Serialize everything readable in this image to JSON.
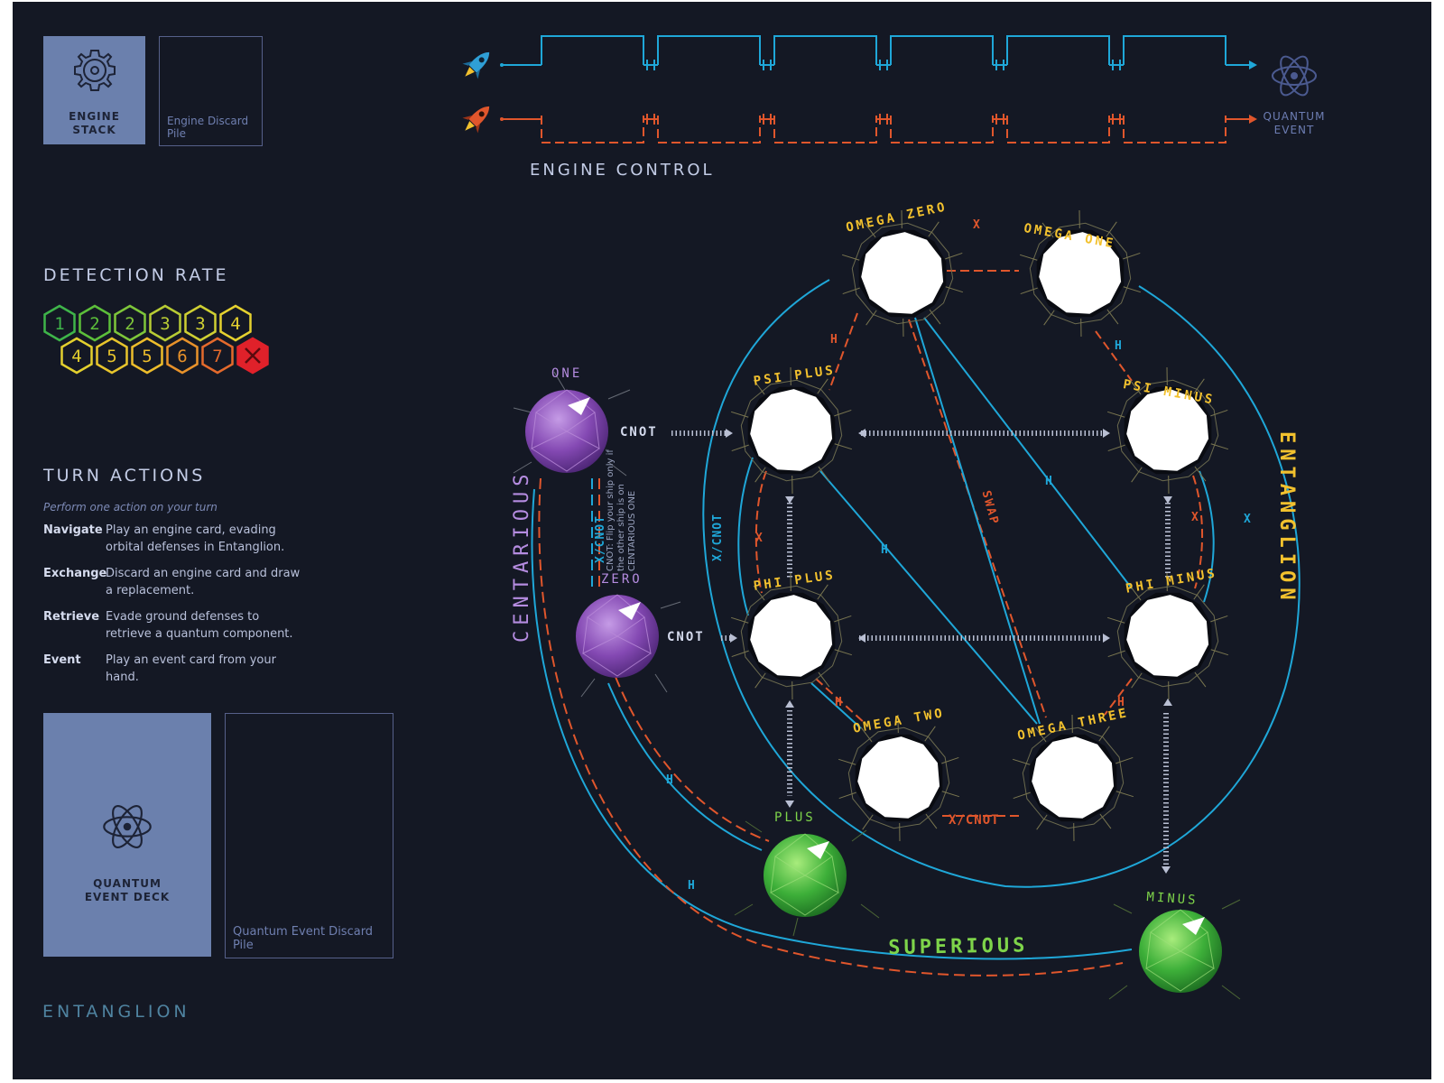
{
  "engine": {
    "stack_label": [
      "ENGINE",
      "STACK"
    ],
    "discard_label": "Engine Discard Pile",
    "control_label": "ENGINE CONTROL",
    "quantum_event_label": [
      "QUANTUM",
      "EVENT"
    ],
    "slots_per_row": 6,
    "rows": [
      {
        "ship": "blue-rocket",
        "color": "#1fa7d8"
      },
      {
        "ship": "orange-rocket",
        "color": "#e0562c"
      }
    ]
  },
  "detection_rate": {
    "title": "DETECTION RATE",
    "row1": [
      {
        "label": "1",
        "color": "#3fb54a"
      },
      {
        "label": "2",
        "color": "#5cbf3a"
      },
      {
        "label": "2",
        "color": "#7ec63a"
      },
      {
        "label": "3",
        "color": "#b8cc34"
      },
      {
        "label": "3",
        "color": "#cfd033"
      },
      {
        "label": "4",
        "color": "#e5d12f"
      }
    ],
    "row2": [
      {
        "label": "4",
        "color": "#e3d02e"
      },
      {
        "label": "5",
        "color": "#e8c52c"
      },
      {
        "label": "5",
        "color": "#edbd2b"
      },
      {
        "label": "6",
        "color": "#e8922a"
      },
      {
        "label": "7",
        "color": "#e46a2c"
      },
      {
        "label": "X",
        "color": "#e0212a",
        "filled": true
      }
    ]
  },
  "turn_actions": {
    "title": "TURN ACTIONS",
    "hint": "Perform one action on your turn",
    "items": [
      {
        "name": "Navigate",
        "desc": "Play an engine card, evading orbital defenses in Entanglion."
      },
      {
        "name": "Exchange",
        "desc": "Discard an engine card and draw a replacement."
      },
      {
        "name": "Retrieve",
        "desc": "Evade ground defenses to retrieve a quantum component."
      },
      {
        "name": "Event",
        "desc": "Play an event card from your hand."
      }
    ]
  },
  "quantum_deck": {
    "label": [
      "QUANTUM",
      "EVENT DECK"
    ],
    "discard_label": "Quantum Event Discard Pile"
  },
  "footer": "ENTANGLION",
  "regions": {
    "centarious": "CENTARIOUS",
    "entanglion": "ENTANGLION",
    "superious": "SUPERIOUS"
  },
  "planets": {
    "one": "ONE",
    "zero": "ZERO",
    "plus": "PLUS",
    "minus": "MINUS",
    "omega_zero": "OMEGA ZERO",
    "omega_one": "OMEGA ONE",
    "psi_plus": "PSI PLUS",
    "psi_minus": "PSI MINUS",
    "phi_plus": "PHI PLUS",
    "phi_minus": "PHI MINUS",
    "omega_two": "OMEGA TWO",
    "omega_three": "OMEGA THREE"
  },
  "gates": {
    "cnot": "CNOT",
    "x_cnot": "X/CNOT",
    "h": "H",
    "x": "X",
    "swap": "SWAP"
  },
  "cnot_note": "CNOT: Flip your ship only if the other ship is on CENTARIOUS ONE",
  "colors": {
    "board": "#141824",
    "blue": "#1fa7d8",
    "orange": "#e0562c",
    "yellow": "#f2c12e",
    "purple": "#8e52b8",
    "green": "#3dae3a",
    "panel": "#6b80ad"
  }
}
